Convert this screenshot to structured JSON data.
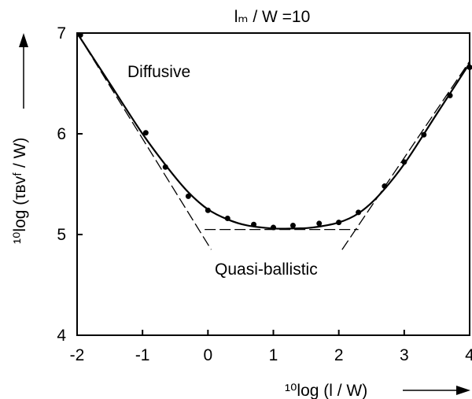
{
  "chart_data": {
    "type": "line",
    "title": "lₘ / W =10",
    "xlabel": "¹⁰log  (l / W)",
    "ylabel": "¹⁰log (τʙvᶠ / W)",
    "xlim": [
      -2,
      4
    ],
    "ylim": [
      4,
      7
    ],
    "xticks": [
      -2,
      -1,
      0,
      1,
      2,
      3,
      4
    ],
    "yticks": [
      4,
      5,
      6,
      7
    ],
    "xtick_labels": [
      "-2",
      "-1",
      "0",
      "1",
      "2",
      "3",
      "4"
    ],
    "ytick_labels": [
      "4",
      "5",
      "6",
      "7"
    ],
    "grid": false,
    "annotations": [
      "Diffusive",
      "Quasi-ballistic"
    ],
    "series": [
      {
        "style": "markers",
        "x": [
          -1.95,
          -0.95,
          -0.65,
          -0.3,
          0,
          0.3,
          0.7,
          1.0,
          1.3,
          1.7,
          2.0,
          2.3,
          2.7,
          3.0,
          3.3,
          3.7,
          4.0
        ],
        "y": [
          6.98,
          6.01,
          5.67,
          5.38,
          5.24,
          5.16,
          5.1,
          5.07,
          5.09,
          5.11,
          5.12,
          5.22,
          5.48,
          5.72,
          5.99,
          6.38,
          6.66
        ]
      },
      {
        "style": "solid",
        "x": [
          -2.0,
          -1.5,
          -1.0,
          -0.6,
          -0.3,
          0.0,
          0.3,
          0.6,
          1.0,
          1.3,
          1.6,
          2.0,
          2.3,
          2.6,
          3.0,
          3.5,
          4.0
        ],
        "y": [
          7.0,
          6.5,
          6.0,
          5.65,
          5.42,
          5.25,
          5.15,
          5.09,
          5.06,
          5.06,
          5.07,
          5.12,
          5.21,
          5.38,
          5.7,
          6.2,
          6.7
        ]
      },
      {
        "style": "dashed",
        "x": [
          -2.0,
          0.05
        ],
        "y": [
          7.0,
          4.85
        ]
      },
      {
        "style": "dashed",
        "x": [
          -0.05,
          2.3
        ],
        "y": [
          5.05,
          5.05
        ]
      },
      {
        "style": "dashed",
        "x": [
          2.05,
          4.0
        ],
        "y": [
          4.85,
          6.72
        ]
      }
    ]
  }
}
